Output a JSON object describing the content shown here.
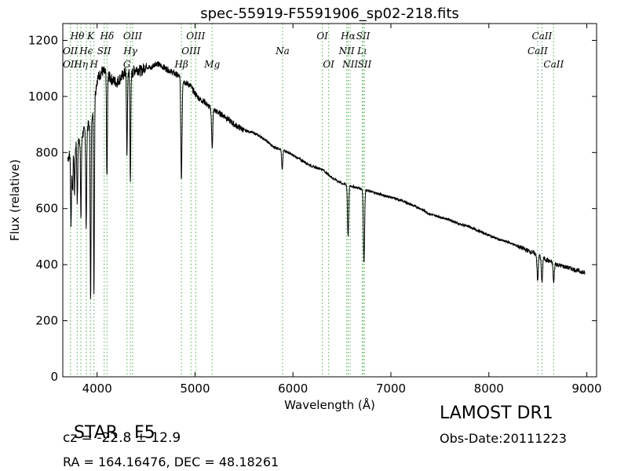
{
  "chart_data": {
    "type": "line",
    "title": "spec-55919-F5591906_sp02-218.fits",
    "xlabel": "Wavelength (Å)",
    "ylabel": "Flux (relative)",
    "xlim": [
      3650,
      9100
    ],
    "ylim": [
      0,
      1260
    ],
    "xticks": [
      4000,
      5000,
      6000,
      7000,
      8000,
      9000
    ],
    "yticks": [
      0,
      200,
      400,
      600,
      800,
      1000,
      1200
    ],
    "grid": false,
    "line_color": "#000000",
    "marker_color": "#66bb66",
    "continuum": {
      "x": [
        3700,
        3760,
        3820,
        3880,
        3920,
        3960,
        4000,
        4050,
        4100,
        4150,
        4200,
        4250,
        4300,
        4350,
        4400,
        4450,
        4500,
        4550,
        4600,
        4650,
        4700,
        4750,
        4800,
        4850,
        4900,
        4950,
        5000,
        5050,
        5100,
        5150,
        5200,
        5300,
        5400,
        5500,
        5600,
        5700,
        5800,
        5900,
        6000,
        6100,
        6200,
        6300,
        6400,
        6500,
        6600,
        6700,
        6800,
        6900,
        7000,
        7100,
        7200,
        7300,
        7400,
        7500,
        7600,
        7700,
        7800,
        7900,
        8000,
        8100,
        8200,
        8300,
        8400,
        8500,
        8600,
        8700,
        8800,
        8900,
        8980
      ],
      "y": [
        780,
        820,
        850,
        880,
        900,
        960,
        1060,
        1090,
        1080,
        1060,
        1050,
        1070,
        1090,
        1080,
        1100,
        1090,
        1110,
        1100,
        1120,
        1110,
        1100,
        1090,
        1080,
        1070,
        1050,
        1040,
        1010,
        990,
        980,
        960,
        950,
        930,
        900,
        880,
        870,
        850,
        820,
        810,
        790,
        770,
        750,
        740,
        710,
        690,
        680,
        670,
        660,
        650,
        640,
        630,
        615,
        600,
        580,
        570,
        560,
        545,
        535,
        520,
        505,
        490,
        480,
        465,
        450,
        435,
        415,
        400,
        390,
        380,
        370
      ]
    },
    "absorption_features": [
      {
        "x": 3734,
        "y": 540
      },
      {
        "x": 3750,
        "y": 650
      },
      {
        "x": 3770,
        "y": 660
      },
      {
        "x": 3798,
        "y": 620
      },
      {
        "x": 3835,
        "y": 570
      },
      {
        "x": 3889,
        "y": 520
      },
      {
        "x": 3934,
        "y": 260
      },
      {
        "x": 3968,
        "y": 300
      },
      {
        "x": 4101,
        "y": 700
      },
      {
        "x": 4305,
        "y": 780
      },
      {
        "x": 4340,
        "y": 710
      },
      {
        "x": 4861,
        "y": 705
      },
      {
        "x": 5175,
        "y": 820
      },
      {
        "x": 5890,
        "y": 740
      },
      {
        "x": 6563,
        "y": 500
      },
      {
        "x": 6725,
        "y": 410
      },
      {
        "x": 8498,
        "y": 340
      },
      {
        "x": 8542,
        "y": 335
      },
      {
        "x": 8662,
        "y": 335
      }
    ],
    "line_markers": [
      {
        "label": "OII",
        "x": 3727,
        "row": 2
      },
      {
        "label": "OII",
        "x": 3727,
        "row": 3
      },
      {
        "label": "Hθ",
        "x": 3798,
        "row": 1
      },
      {
        "label": "Hη",
        "x": 3835,
        "row": 3
      },
      {
        "label": "K",
        "x": 3934,
        "row": 1
      },
      {
        "label": "Hϵ",
        "x": 3889,
        "row": 2
      },
      {
        "label": "SII",
        "x": 4072,
        "row": 2
      },
      {
        "label": "H",
        "x": 3968,
        "row": 3
      },
      {
        "label": "Hδ",
        "x": 4102,
        "row": 1
      },
      {
        "label": "OIII",
        "x": 4363,
        "row": 1
      },
      {
        "label": "Hγ",
        "x": 4340,
        "row": 2
      },
      {
        "label": "G",
        "x": 4305,
        "row": 3
      },
      {
        "label": "OIII",
        "x": 5007,
        "row": 1
      },
      {
        "label": "OIII",
        "x": 4959,
        "row": 2
      },
      {
        "label": "Hβ",
        "x": 4861,
        "row": 3
      },
      {
        "label": "Mg",
        "x": 5175,
        "row": 3
      },
      {
        "label": "Na",
        "x": 5894,
        "row": 2
      },
      {
        "label": "OI",
        "x": 6300,
        "row": 1
      },
      {
        "label": "OI",
        "x": 6364,
        "row": 3
      },
      {
        "label": "Hα",
        "x": 6563,
        "row": 1
      },
      {
        "label": "SII",
        "x": 6716,
        "row": 1
      },
      {
        "label": "NII",
        "x": 6548,
        "row": 2
      },
      {
        "label": "Lι",
        "x": 6707,
        "row": 2
      },
      {
        "label": "NII",
        "x": 6584,
        "row": 3
      },
      {
        "label": "SII",
        "x": 6731,
        "row": 3
      },
      {
        "label": "CaII",
        "x": 8542,
        "row": 1
      },
      {
        "label": "CaII",
        "x": 8498,
        "row": 2
      },
      {
        "label": "CaII",
        "x": 8662,
        "row": 3
      }
    ]
  },
  "info": {
    "object_class": "STAR",
    "subclass": "F5",
    "redshift": "cz = -22.8 ± 12.9",
    "coords": "RA = 164.16476, DEC = 48.18261",
    "survey": "LAMOST DR1",
    "obs_date": "Obs-Date:20111223"
  }
}
